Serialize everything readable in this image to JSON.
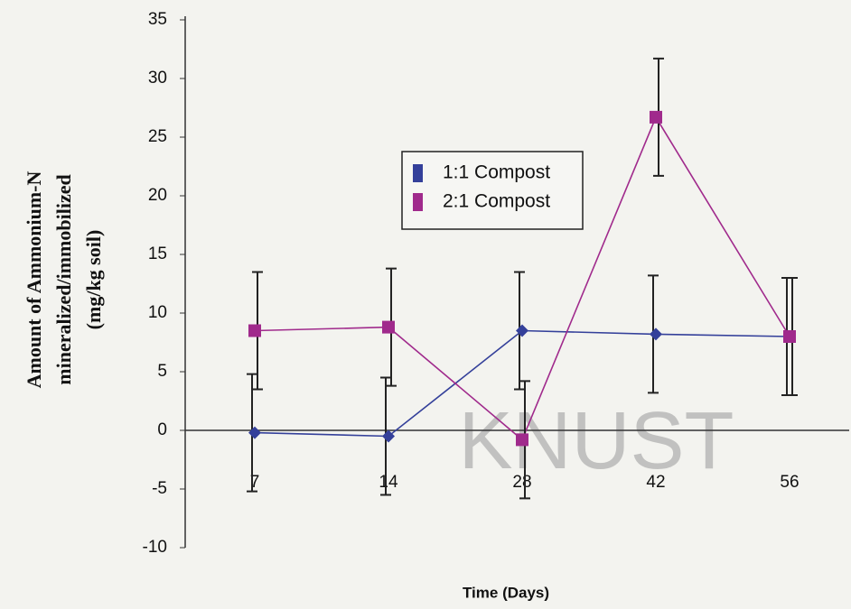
{
  "chart_data": {
    "type": "line",
    "y_label": [
      "Amount of Ammonium-N",
      "mineralized/immobilized",
      "(mg/kg soil)"
    ],
    "x_label": "Time (Days)",
    "watermark": "KNUST",
    "categories": [
      "7",
      "14",
      "28",
      "42",
      "56"
    ],
    "series": [
      {
        "name": "1:1 Compost",
        "color": "#34409a",
        "marker": "diamond",
        "values": [
          -0.2,
          -0.5,
          8.5,
          8.2,
          8.0
        ],
        "errors": [
          5,
          5,
          5,
          5,
          5
        ]
      },
      {
        "name": "2:1 Compost",
        "color": "#a02a8c",
        "marker": "square",
        "values": [
          8.5,
          8.8,
          -0.8,
          26.7,
          8.0
        ],
        "errors": [
          5,
          5,
          5,
          5,
          5
        ]
      }
    ],
    "ylim": [
      -10,
      35
    ],
    "yticks": [
      -10,
      -5,
      0,
      5,
      10,
      15,
      20,
      25,
      30,
      35
    ],
    "grid": false
  }
}
